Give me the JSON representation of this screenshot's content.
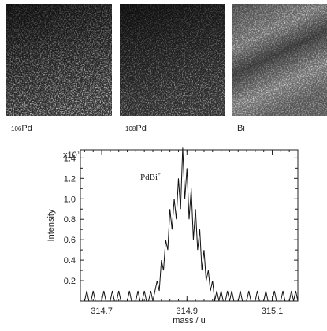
{
  "panels": [
    {
      "label": "Pd",
      "isotope": "106"
    },
    {
      "label": "Pd",
      "isotope": "108"
    },
    {
      "label": "Bi"
    }
  ],
  "chart_data": {
    "type": "line",
    "x_label": "mass / u",
    "y_label": "Intensity",
    "y_scale_label": "x10",
    "y_scale_exp": "1",
    "annotation": "PdBi",
    "annotation_sup": "+",
    "color": "#111111",
    "xlim": [
      314.65,
      315.16
    ],
    "xticks": [
      314.7,
      314.9,
      315.1
    ],
    "ylim": [
      0,
      1.48
    ],
    "yticks": [
      0.2,
      0.4,
      0.6,
      0.8,
      {
        "value": 1,
        "label": "1.0"
      },
      1.2,
      1.4
    ],
    "x": [
      314.66,
      314.665,
      314.67,
      314.675,
      314.68,
      314.685,
      314.69,
      314.695,
      314.7,
      314.705,
      314.71,
      314.715,
      314.72,
      314.725,
      314.73,
      314.735,
      314.74,
      314.745,
      314.75,
      314.755,
      314.76,
      314.765,
      314.77,
      314.775,
      314.78,
      314.785,
      314.79,
      314.795,
      314.8,
      314.805,
      314.81,
      314.815,
      314.82,
      314.825,
      314.83,
      314.835,
      314.84,
      314.845,
      314.85,
      314.855,
      314.86,
      314.865,
      314.87,
      314.875,
      314.88,
      314.885,
      314.89,
      314.895,
      314.9,
      314.905,
      314.91,
      314.915,
      314.92,
      314.925,
      314.93,
      314.935,
      314.94,
      314.945,
      314.95,
      314.955,
      314.96,
      314.965,
      314.97,
      314.975,
      314.98,
      314.985,
      314.99,
      314.995,
      315,
      315.005,
      315.01,
      315.015,
      315.02,
      315.025,
      315.03,
      315.035,
      315.04,
      315.045,
      315.05,
      315.055,
      315.06,
      315.065,
      315.07,
      315.075,
      315.08,
      315.085,
      315.09,
      315.095,
      315.1,
      315.105,
      315.11,
      315.115,
      315.12,
      315.125,
      315.13,
      315.135,
      315.14,
      315.145,
      315.15,
      315.155,
      315.16
    ],
    "values": [
      0,
      0.1,
      0,
      0,
      0.1,
      0,
      0,
      0,
      0,
      0.1,
      0,
      0,
      0,
      0.1,
      0,
      0,
      0.1,
      0,
      0,
      0,
      0,
      0.1,
      0,
      0,
      0,
      0.1,
      0,
      0,
      0.1,
      0,
      0,
      0.1,
      0,
      0.1,
      0.2,
      0.1,
      0.4,
      0.3,
      0.6,
      0.5,
      0.9,
      0.7,
      1.0,
      0.8,
      1.2,
      0.9,
      1.5,
      1.0,
      1.3,
      0.8,
      1.1,
      0.6,
      0.9,
      0.5,
      0.7,
      0.3,
      0.5,
      0.2,
      0.3,
      0.1,
      0.2,
      0,
      0.1,
      0,
      0.1,
      0,
      0,
      0.1,
      0,
      0.1,
      0,
      0,
      0,
      0.1,
      0,
      0,
      0,
      0.1,
      0,
      0,
      0,
      0.1,
      0,
      0,
      0,
      0.1,
      0,
      0,
      0,
      0.1,
      0,
      0,
      0,
      0.1,
      0,
      0,
      0,
      0.1,
      0,
      0.1,
      0
    ]
  }
}
